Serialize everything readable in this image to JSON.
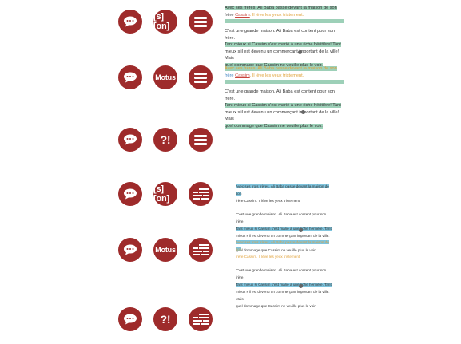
{
  "icons": {
    "bracket_on": "[s][on]",
    "motus": "Motus",
    "excl": "?!"
  },
  "panel1": {
    "line1": "Avec ses frères, Ali Baba passe devant la maison de son",
    "line2a": "frère ",
    "line2b": "Cassim",
    "line2c": ". Il lève les yeux tristement.",
    "p2l1": "C'est une grande maison. Ali Baba est content pour son frère.",
    "p2l2": "Tant mieux si Cassim s'est marié à une riche héritière! Tant",
    "p2l3": "mieux s'il est devenu un commerçant important de la ville! Mais",
    "p2l4": "quel dommage que Cassim ne veuille plus le voir."
  },
  "panel2": {
    "line1": "Avec ses frères, Ali Baba passe devant la maison de son",
    "line2a": "frère ",
    "line2b": "Cassim",
    "line2c": ". Il lève les yeux tristement.",
    "p2l1": "C'est une grande maison. Ali Baba est content pour son frère.",
    "p2l2": "Tant mieux si Cassim s'est marié à une riche héritière! Tant",
    "p2l3": "mieux s'il est devenu un commerçant important de la ville! Mais",
    "p2l4": "quel dommage que Cassim ne veuille plus le voir."
  },
  "panel3": {
    "line1": "Avec ses trois frères, Ali Baba passe devant la maison de son",
    "line2": "frère Cassim. Il lève les yeux tristement.",
    "p2l1": "C'est une grande maison. Ali Baba est content pour son frère.",
    "p2l2": "Tant mieux si Cassim s'est marié à une riche héritière. Tant",
    "p2l3": "mieux s'il est devenu un commerçant important de la ville. Mais",
    "p2l4": "quel dommage que Cassim ne veuille plus le voir."
  },
  "panel4": {
    "line1": "Avec ses trois frères, Ali Baba passe devant la maison de son",
    "line2": "frère Cassim. Il lève les yeux tristement.",
    "p2l1": "C'est une grande maison. Ali Baba est content pour son frère.",
    "p2l2": "Tant mieux si Cassim s'est marié à une riche héritière. Tant",
    "p2l3": "mieux s'il est devenu un commerçant important de la ville. Mais",
    "p2l4": "quel dommage que Cassim ne veuille plus le voir."
  },
  "colors": {
    "icon_bg": "#9e2b2b",
    "highlight_green": "#9dd0b8",
    "highlight_blue": "#7fc4dd"
  }
}
